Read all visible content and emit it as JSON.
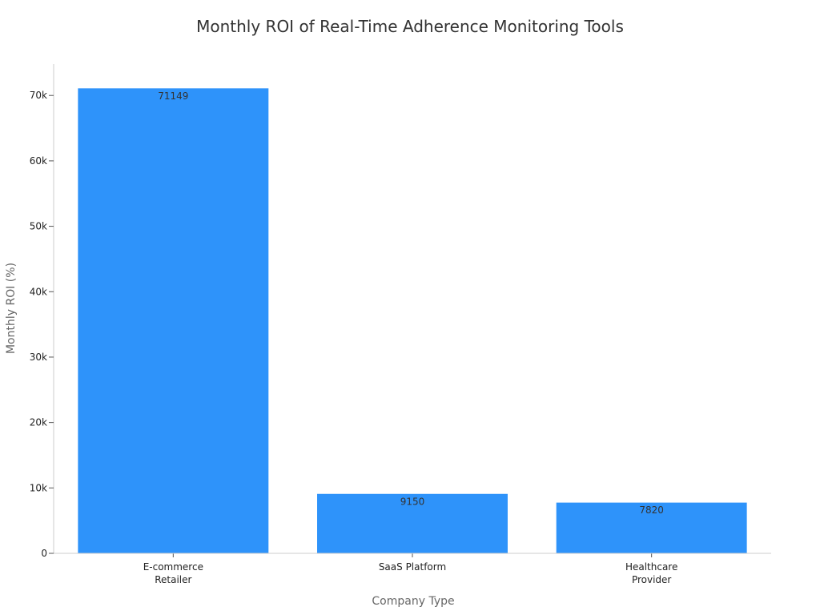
{
  "chart_data": {
    "type": "bar",
    "title": "Monthly ROI of Real-Time Adherence Monitoring Tools",
    "xlabel": "Company Type",
    "ylabel": "Monthly ROI (%)",
    "categories": [
      [
        "E-commerce",
        "Retailer"
      ],
      [
        "SaaS Platform"
      ],
      [
        "Healthcare",
        "Provider"
      ]
    ],
    "values": [
      71149,
      9150,
      7820
    ],
    "data_labels": [
      "71149",
      "9150",
      "7820"
    ],
    "ylim": [
      0,
      74800
    ],
    "yticks": [
      0,
      10000,
      20000,
      30000,
      40000,
      50000,
      60000,
      70000
    ],
    "ytick_labels": [
      "0",
      "10k",
      "20k",
      "30k",
      "40k",
      "50k",
      "60k",
      "70k"
    ],
    "grid": false,
    "legend": "none",
    "bar_color": "#2E93FA"
  }
}
